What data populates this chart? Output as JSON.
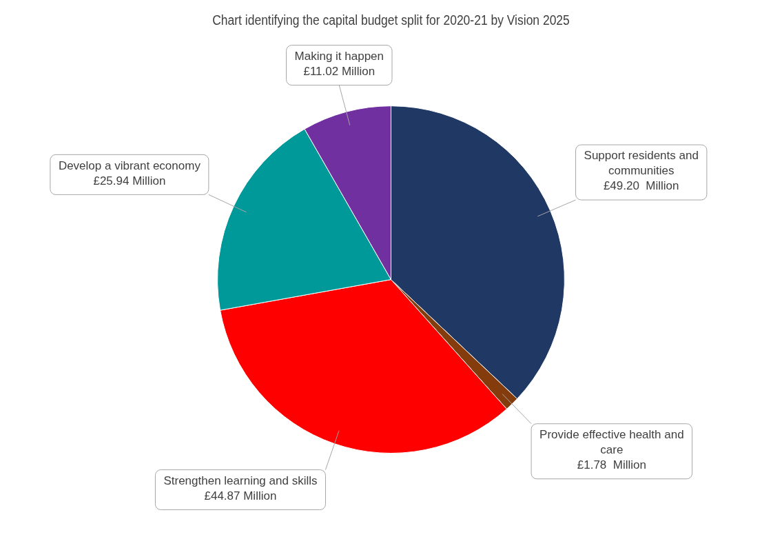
{
  "chart_data": {
    "type": "pie",
    "title": "Chart identifying the capital budget split for 2020-21 by Vision 2025",
    "categories": [
      "Support residents and communities",
      "Provide effective health and care",
      "Strengthen learning and skills",
      "Develop a vibrant economy",
      "Making it happen"
    ],
    "values": [
      49.2,
      1.78,
      44.87,
      25.94,
      11.02
    ],
    "value_labels": [
      "£49.20  Million",
      "£1.78  Million",
      "£44.87 Million",
      "£25.94 Million",
      "£11.02 Million"
    ],
    "colors": [
      "#1f3864",
      "#843c0c",
      "#ff0000",
      "#009999",
      "#7030a0"
    ],
    "legend": false
  }
}
